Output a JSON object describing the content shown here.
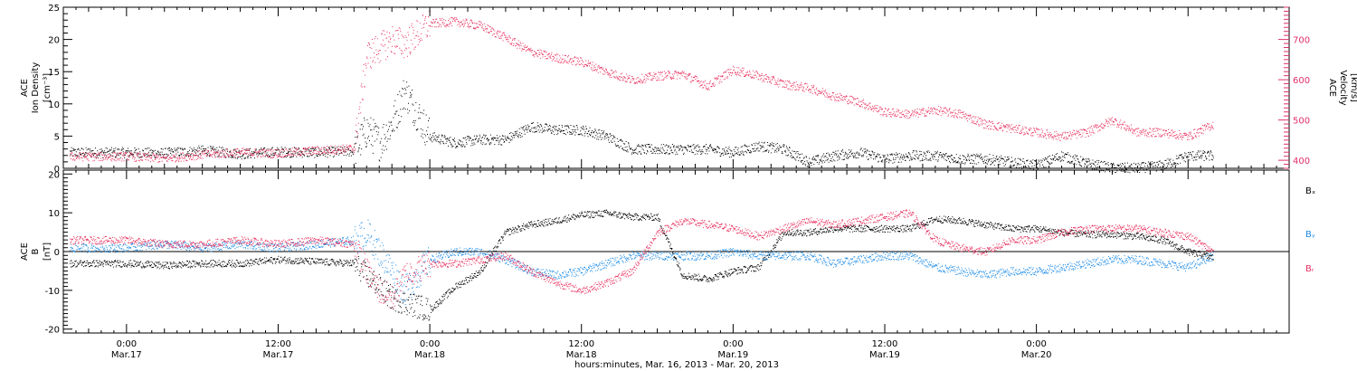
{
  "chart_data": [
    {
      "type": "scatter",
      "panel": "top",
      "ylabel_left": [
        "ACE",
        "Ion Density",
        "[cm⁻³]"
      ],
      "ylabel_right": [
        "ACE",
        "Velocity",
        "[km/s]"
      ],
      "ylim_left": [
        0,
        25
      ],
      "ylim_right": [
        380,
        780
      ],
      "yticks_left": [
        0,
        5,
        10,
        15,
        20,
        25
      ],
      "yticks_right": [
        400,
        500,
        600,
        700
      ],
      "colors": {
        "density": "#000000",
        "velocity": "#e8305f"
      },
      "series": [
        {
          "name": "Ion Density",
          "axis": "left",
          "color": "#000000",
          "x_hours": [
            0,
            3,
            6,
            9,
            12,
            15,
            18,
            19,
            20,
            21,
            22,
            24,
            26,
            28,
            30,
            32,
            34,
            36,
            38,
            40,
            42,
            44,
            46,
            48,
            50,
            52,
            54,
            56,
            58,
            60,
            62,
            64,
            66,
            68,
            70,
            72,
            74,
            76,
            78,
            80,
            82,
            84,
            86
          ],
          "values": [
            2.5,
            2.4,
            2.8,
            2.3,
            2.6,
            2.5,
            2.7,
            6,
            4,
            7,
            12,
            5,
            4,
            4.5,
            4.5,
            6.5,
            6,
            6,
            5,
            3,
            3,
            3,
            3,
            2.5,
            3.5,
            3,
            1,
            2,
            2.5,
            1.5,
            2,
            2,
            1.5,
            1.5,
            1,
            0.5,
            2,
            0.8,
            0.1,
            0.1,
            0.5,
            2,
            2
          ]
        },
        {
          "name": "Velocity",
          "axis": "right",
          "color": "#e8305f",
          "x_hours": [
            0,
            3,
            6,
            9,
            12,
            15,
            18,
            19,
            20,
            21,
            22,
            24,
            26,
            28,
            30,
            32,
            34,
            36,
            38,
            40,
            42,
            44,
            46,
            48,
            50,
            52,
            54,
            56,
            58,
            60,
            62,
            64,
            66,
            68,
            70,
            72,
            74,
            76,
            78,
            80,
            82,
            84,
            86
          ],
          "values": [
            410,
            405,
            415,
            420,
            418,
            425,
            430,
            660,
            680,
            700,
            690,
            740,
            745,
            735,
            705,
            670,
            655,
            645,
            620,
            600,
            610,
            615,
            585,
            625,
            610,
            590,
            580,
            560,
            545,
            520,
            515,
            525,
            515,
            490,
            480,
            470,
            460,
            470,
            500,
            470,
            470,
            460,
            490
          ]
        }
      ]
    },
    {
      "type": "scatter",
      "panel": "bottom",
      "ylabel_left": [
        "ACE",
        "B",
        "[nT]"
      ],
      "ylim": [
        -21,
        21
      ],
      "yticks": [
        -20,
        -10,
        0,
        10,
        20
      ],
      "zero_line": true,
      "legend": [
        "Bₓ",
        "Bᵧ",
        "Bᵣ"
      ],
      "legend_placement": "right",
      "series": [
        {
          "name": "Bx",
          "color": "#000000",
          "x_hours": [
            0,
            3,
            6,
            9,
            12,
            15,
            18,
            19,
            20,
            21,
            22,
            24,
            26,
            28,
            30,
            32,
            34,
            36,
            38,
            40,
            42,
            44,
            46,
            48,
            50,
            52,
            54,
            56,
            58,
            60,
            62,
            64,
            66,
            68,
            70,
            72,
            74,
            76,
            78,
            80,
            82,
            84,
            86
          ],
          "values": [
            -3,
            -3.5,
            -3,
            -3,
            -2,
            -2.5,
            -3,
            -6,
            -9,
            -12,
            -13,
            -15,
            -9,
            -5,
            5,
            7,
            8,
            9.5,
            10,
            9,
            9,
            -6,
            -7,
            -5,
            -4,
            5,
            5,
            6,
            6,
            6,
            6,
            8.5,
            8,
            7,
            6,
            6,
            5,
            4.5,
            4.5,
            4,
            3,
            0,
            -1.5
          ]
        },
        {
          "name": "By",
          "color": "#1e8ce6",
          "x_hours": [
            0,
            3,
            6,
            9,
            12,
            15,
            18,
            19,
            20,
            21,
            22,
            24,
            26,
            28,
            30,
            32,
            34,
            36,
            38,
            40,
            42,
            44,
            46,
            48,
            50,
            52,
            54,
            56,
            58,
            60,
            62,
            64,
            66,
            68,
            70,
            72,
            74,
            76,
            78,
            80,
            82,
            84,
            86
          ],
          "values": [
            1,
            2,
            1,
            2,
            1,
            2,
            3,
            5,
            0,
            -5,
            -10,
            -2,
            0,
            0,
            -2,
            -5,
            -6,
            -5,
            -3,
            -1,
            -1,
            -1,
            -1,
            0,
            -1,
            -1,
            -1,
            -3,
            -2,
            -1,
            -1,
            -4,
            -5,
            -6,
            -5,
            -5,
            -4,
            -3,
            -2,
            -2,
            -3,
            -4,
            -1
          ]
        },
        {
          "name": "Bz",
          "color": "#e8305f",
          "x_hours": [
            0,
            3,
            6,
            9,
            12,
            15,
            18,
            19,
            20,
            21,
            22,
            24,
            26,
            28,
            30,
            32,
            34,
            36,
            38,
            40,
            42,
            44,
            46,
            48,
            50,
            52,
            54,
            56,
            58,
            60,
            62,
            64,
            66,
            68,
            70,
            72,
            74,
            76,
            78,
            80,
            82,
            84,
            86
          ],
          "values": [
            3,
            2,
            2,
            3,
            2,
            3,
            2,
            -5,
            -10,
            -12,
            -6,
            -3,
            -3,
            -2,
            -1,
            -5,
            -8,
            -10,
            -8,
            -5,
            5,
            8,
            7,
            6,
            4,
            6,
            8,
            7,
            8,
            9,
            10,
            3,
            1,
            0,
            3,
            3,
            5,
            6,
            6,
            6,
            5,
            4,
            0
          ]
        }
      ]
    }
  ],
  "x_axis": {
    "xlim_hours": [
      -5,
      92
    ],
    "ticks": [
      {
        "h": 0,
        "time": "0:00",
        "date": "Mar.17"
      },
      {
        "h": 12,
        "time": "12:00",
        "date": "Mar.17"
      },
      {
        "h": 24,
        "time": "0:00",
        "date": "Mar.18"
      },
      {
        "h": 36,
        "time": "12:00",
        "date": "Mar.18"
      },
      {
        "h": 48,
        "time": "0:00",
        "date": "Mar.19"
      },
      {
        "h": 60,
        "time": "12:00",
        "date": "Mar.19"
      },
      {
        "h": 72,
        "time": "0:00",
        "date": "Mar.20"
      }
    ],
    "title": "hours:minutes, Mar. 16, 2013 - Mar. 20, 2013"
  }
}
